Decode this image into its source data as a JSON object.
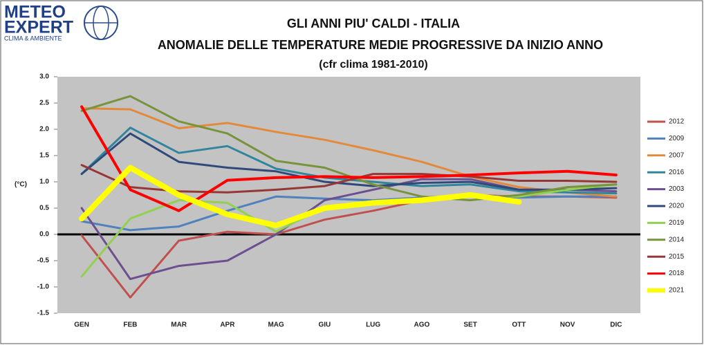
{
  "chart_data": {
    "type": "line",
    "logo": [
      "METEO",
      "EXPERT",
      "CLIMA & AMBIENTE"
    ],
    "title": "GLI ANNI PIU' CALDI - ITALIA",
    "subtitle": "ANOMALIE DELLE TEMPERATURE MEDIE PROGRESSIVE DA INIZIO ANNO",
    "note": "(cfr clima 1981-2010)",
    "y_label": "(°C)",
    "categories": [
      "GEN",
      "FEB",
      "MAR",
      "APR",
      "MAG",
      "GIU",
      "LUG",
      "AGO",
      "SET",
      "OTT",
      "NOV",
      "DIC"
    ],
    "ylim": [
      -1.5,
      3.0
    ],
    "yticks": [
      {
        "value": 3,
        "label": "3.0"
      },
      {
        "value": 2.5,
        "label": "2.5"
      },
      {
        "value": 2,
        "label": "2.0"
      },
      {
        "value": 1.5,
        "label": "1.5"
      },
      {
        "value": 1,
        "label": "1.0"
      },
      {
        "value": 0.5,
        "label": "0.5"
      },
      {
        "value": 0,
        "label": "0.0"
      },
      {
        "value": -0.5,
        "label": "-0.5"
      },
      {
        "value": -1,
        "label": "-1.0"
      },
      {
        "value": -1.5,
        "label": "-1.5"
      }
    ],
    "grid": false,
    "legend": "right",
    "series": [
      {
        "name": "2012",
        "color": "#c0504d",
        "values": [
          -0.02,
          -1.2,
          -0.12,
          0.05,
          0.0,
          0.28,
          0.45,
          0.65,
          0.75,
          0.72,
          0.72,
          0.7
        ]
      },
      {
        "name": "2009",
        "color": "#4f81bd",
        "values": [
          0.25,
          0.08,
          0.15,
          0.45,
          0.72,
          0.68,
          0.65,
          0.7,
          0.75,
          0.7,
          0.72,
          0.72
        ]
      },
      {
        "name": "2007",
        "color": "#e3893a",
        "values": [
          2.4,
          2.38,
          2.02,
          2.12,
          1.95,
          1.8,
          1.6,
          1.38,
          1.1,
          0.9,
          0.8,
          0.72
        ]
      },
      {
        "name": "2016",
        "color": "#31859c",
        "values": [
          1.15,
          2.03,
          1.55,
          1.68,
          1.25,
          1.08,
          1.0,
          0.92,
          0.95,
          0.82,
          0.8,
          0.78
        ]
      },
      {
        "name": "2003",
        "color": "#6b4f8f",
        "values": [
          0.5,
          -0.85,
          -0.6,
          -0.5,
          0.0,
          0.65,
          0.85,
          1.05,
          1.05,
          0.85,
          0.85,
          0.82
        ]
      },
      {
        "name": "2020",
        "color": "#2f4a7a",
        "values": [
          1.15,
          1.92,
          1.38,
          1.27,
          1.2,
          1.0,
          0.92,
          0.98,
          1.0,
          0.85,
          0.85,
          0.88
        ]
      },
      {
        "name": "2019",
        "color": "#92d050",
        "values": [
          -0.8,
          0.3,
          0.65,
          0.6,
          0.05,
          0.52,
          0.62,
          0.65,
          0.72,
          0.72,
          0.85,
          0.95
        ]
      },
      {
        "name": "2014",
        "color": "#77933c",
        "values": [
          2.35,
          2.63,
          2.15,
          1.92,
          1.4,
          1.27,
          0.95,
          0.72,
          0.65,
          0.75,
          0.9,
          0.95
        ]
      },
      {
        "name": "2015",
        "color": "#953735",
        "values": [
          1.32,
          0.9,
          0.82,
          0.8,
          0.85,
          0.92,
          1.15,
          1.15,
          1.1,
          1.02,
          1.02,
          1.0
        ]
      },
      {
        "name": "2018",
        "color": "#ff0000",
        "values": [
          2.43,
          0.85,
          0.45,
          1.03,
          1.08,
          1.1,
          1.08,
          1.1,
          1.13,
          1.17,
          1.2,
          1.13
        ]
      },
      {
        "name": "2021",
        "color": "#ffff00",
        "values": [
          0.3,
          1.27,
          0.75,
          0.38,
          0.17,
          0.5,
          0.6,
          0.65,
          0.75,
          0.62,
          null,
          null
        ]
      }
    ]
  }
}
